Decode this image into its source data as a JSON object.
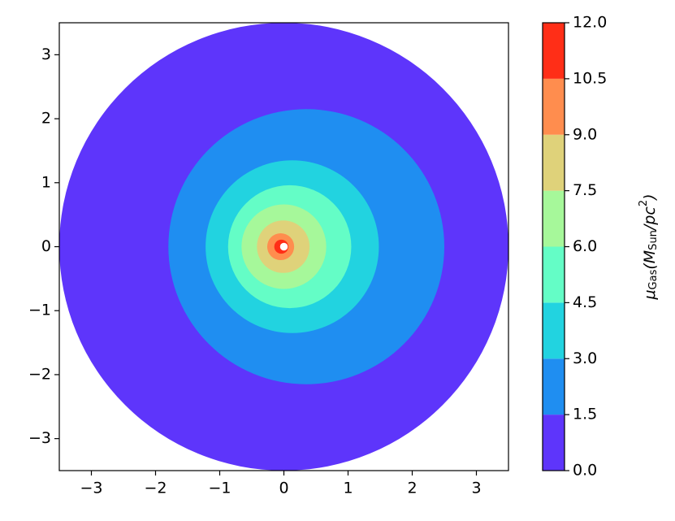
{
  "chart_data": {
    "type": "contourf",
    "xlim": [
      -3.5,
      3.5
    ],
    "ylim": [
      -3.5,
      3.5
    ],
    "xticks": [
      {
        "value": -3,
        "label": "−3"
      },
      {
        "value": -2,
        "label": "−2"
      },
      {
        "value": -1,
        "label": "−1"
      },
      0,
      1,
      2,
      3
    ],
    "yticks": [
      {
        "value": -3,
        "label": "−3"
      },
      {
        "value": -2,
        "label": "−2"
      },
      {
        "value": -1,
        "label": "−1"
      },
      0,
      1,
      2,
      3
    ],
    "regions": [
      {
        "cx": 0.0,
        "cy": 0.0,
        "r": 3.5,
        "color": "#5e35fb"
      },
      {
        "cx": 0.35,
        "cy": 0.0,
        "r": 2.15,
        "color": "#1f8ef1"
      },
      {
        "cx": 0.13,
        "cy": 0.0,
        "r": 1.35,
        "color": "#22d3e0"
      },
      {
        "cx": 0.09,
        "cy": 0.0,
        "r": 0.96,
        "color": "#64fdc6"
      },
      {
        "cx": 0.0,
        "cy": 0.0,
        "r": 0.66,
        "color": "#a6f89a"
      },
      {
        "cx": -0.01,
        "cy": 0.0,
        "r": 0.41,
        "color": "#dfd27a"
      },
      {
        "cx": -0.05,
        "cy": 0.0,
        "r": 0.21,
        "color": "#ff8d4e"
      },
      {
        "cx": -0.04,
        "cy": 0.0,
        "r": 0.11,
        "color": "#ff2e17"
      }
    ],
    "hole": {
      "cx": 0.0,
      "cy": 0.0,
      "r": 0.06,
      "color": "#ffffff"
    },
    "cbar_lim": [
      0,
      12
    ],
    "cbar_ticks": [
      {
        "value": 0,
        "label": "0.0"
      },
      {
        "value": 1.5,
        "label": "1.5"
      },
      {
        "value": 3,
        "label": "3.0"
      },
      {
        "value": 4.5,
        "label": "4.5"
      },
      {
        "value": 6,
        "label": "6.0"
      },
      {
        "value": 7.5,
        "label": "7.5"
      },
      {
        "value": 9,
        "label": "9.0"
      },
      {
        "value": 10.5,
        "label": "10.5"
      },
      {
        "value": 12,
        "label": "12.0"
      }
    ],
    "cbar_label": [
      {
        "text": "μ"
      },
      {
        "text": "Gas",
        "sub": true
      },
      {
        "text": "(M"
      },
      {
        "text": "Sun",
        "sub": true
      },
      {
        "text": "/pc"
      },
      {
        "text": "2",
        "sup": true
      },
      {
        "text": ")"
      }
    ]
  }
}
